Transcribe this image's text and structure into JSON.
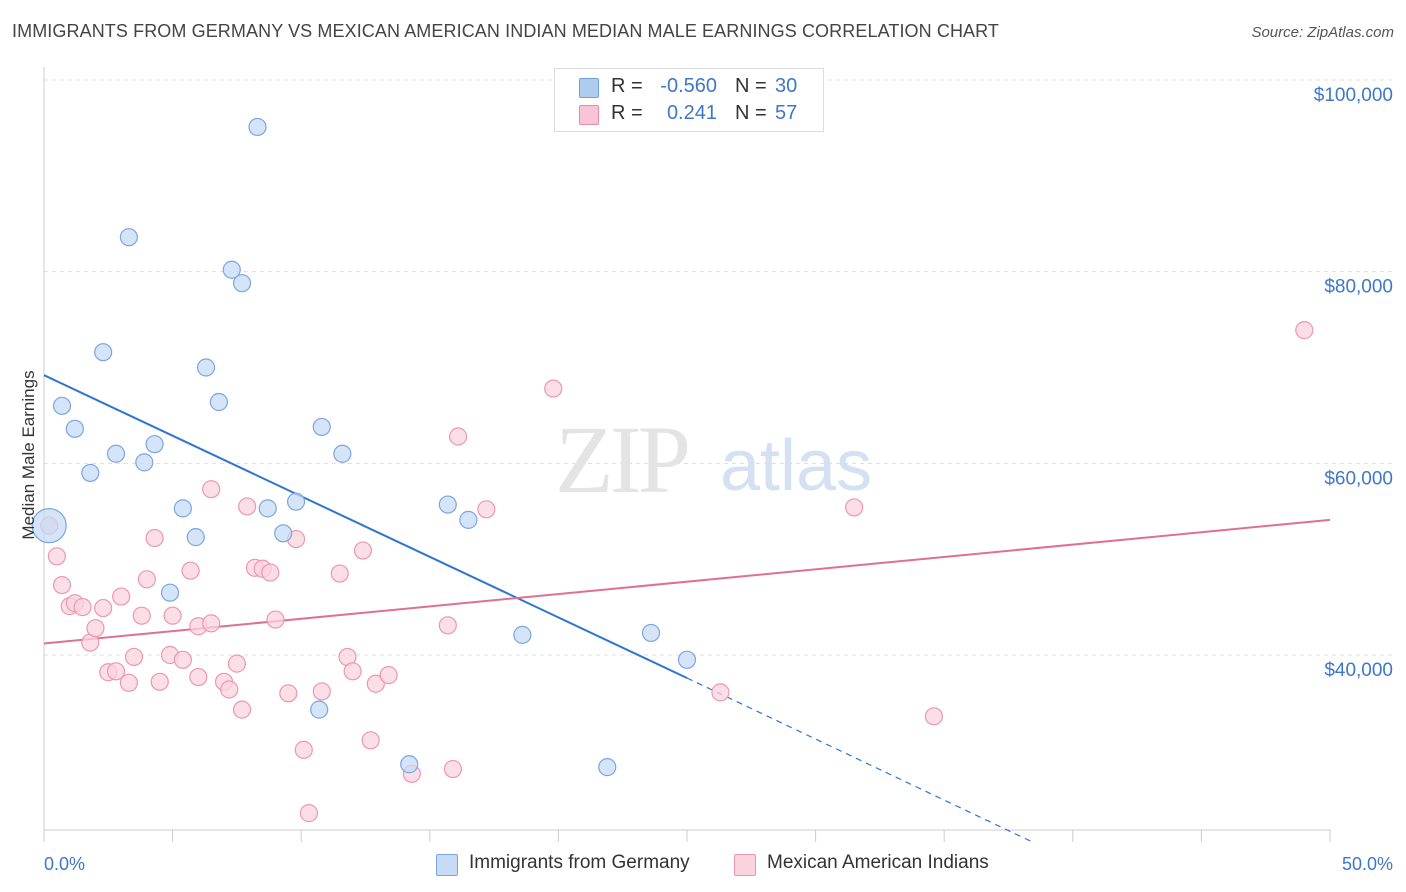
{
  "header": {
    "title": "IMMIGRANTS FROM GERMANY VS MEXICAN AMERICAN INDIAN MEDIAN MALE EARNINGS CORRELATION CHART",
    "source": "Source: ZipAtlas.com"
  },
  "watermark": {
    "zip": "ZIP",
    "atlas": "atlas"
  },
  "legend": {
    "rows": [
      {
        "r_label": "R =",
        "r_value": "-0.560",
        "n_label": "N =",
        "n_value": "30",
        "color": "#aecbf0",
        "border": "#6f9fdc"
      },
      {
        "r_label": "R =",
        "r_value": "0.241",
        "n_label": "N =",
        "n_value": "57",
        "color": "#f7c5d5",
        "border": "#e98aa8"
      }
    ]
  },
  "bottom_legend": {
    "items": [
      {
        "label": "Immigrants from Germany",
        "color": "#c7dbf5",
        "border": "#7aa6df"
      },
      {
        "label": "Mexican American Indians",
        "color": "#fbd3df",
        "border": "#eb97b1"
      }
    ]
  },
  "chart_data": {
    "type": "scatter",
    "title": "IMMIGRANTS FROM GERMANY VS MEXICAN AMERICAN INDIAN MEDIAN MALE EARNINGS CORRELATION CHART",
    "xlabel": "",
    "ylabel": "Median Male Earnings",
    "xlim": [
      0,
      50
    ],
    "ylim": [
      22000,
      103000
    ],
    "x_tick_labels": [
      "0.0%",
      "50.0%"
    ],
    "y_ticks": [
      40000,
      60000,
      80000,
      100000
    ],
    "y_tick_labels": [
      "$40,000",
      "$60,000",
      "$80,000",
      "$100,000"
    ],
    "grid": true,
    "legend_position": "top-center",
    "series": [
      {
        "name": "Immigrants from Germany",
        "color": "#7aa6df",
        "fill": "#c7dbf5",
        "line_color": "#2f74d0",
        "trend": {
          "x0": 0,
          "y0": 69200,
          "x1": 25,
          "y1": 37600,
          "dashed_to_x": 38.5,
          "dashed_to_y": 20400
        },
        "points": [
          {
            "x": 0.2,
            "y": 53500,
            "big": true
          },
          {
            "x": 0.7,
            "y": 66000
          },
          {
            "x": 1.2,
            "y": 63600
          },
          {
            "x": 1.8,
            "y": 59000
          },
          {
            "x": 2.3,
            "y": 71600
          },
          {
            "x": 2.8,
            "y": 61000
          },
          {
            "x": 3.3,
            "y": 83600
          },
          {
            "x": 3.9,
            "y": 60100
          },
          {
            "x": 4.3,
            "y": 62000
          },
          {
            "x": 4.9,
            "y": 46500
          },
          {
            "x": 5.4,
            "y": 55300
          },
          {
            "x": 5.9,
            "y": 52300
          },
          {
            "x": 6.3,
            "y": 70000
          },
          {
            "x": 6.8,
            "y": 66400
          },
          {
            "x": 7.3,
            "y": 80200
          },
          {
            "x": 7.7,
            "y": 78800
          },
          {
            "x": 8.3,
            "y": 95100
          },
          {
            "x": 8.7,
            "y": 55300
          },
          {
            "x": 9.3,
            "y": 52700
          },
          {
            "x": 9.8,
            "y": 56000
          },
          {
            "x": 10.7,
            "y": 34300
          },
          {
            "x": 10.8,
            "y": 63800
          },
          {
            "x": 11.6,
            "y": 61000
          },
          {
            "x": 14.2,
            "y": 28600
          },
          {
            "x": 15.7,
            "y": 55700
          },
          {
            "x": 16.5,
            "y": 54100
          },
          {
            "x": 18.6,
            "y": 42100
          },
          {
            "x": 21.9,
            "y": 28300
          },
          {
            "x": 23.6,
            "y": 42300
          },
          {
            "x": 25.0,
            "y": 39500
          }
        ]
      },
      {
        "name": "Mexican American Indians",
        "color": "#eb97b1",
        "fill": "#fbd3df",
        "line_color": "#e06f96",
        "trend": {
          "x0": 0,
          "y0": 41200,
          "x1": 50,
          "y1": 54100
        },
        "points": [
          {
            "x": 0.2,
            "y": 53500
          },
          {
            "x": 0.5,
            "y": 50300
          },
          {
            "x": 0.7,
            "y": 47300
          },
          {
            "x": 1.0,
            "y": 45100
          },
          {
            "x": 1.2,
            "y": 45400
          },
          {
            "x": 1.5,
            "y": 45000
          },
          {
            "x": 1.8,
            "y": 41300
          },
          {
            "x": 2.0,
            "y": 42800
          },
          {
            "x": 2.3,
            "y": 44900
          },
          {
            "x": 2.5,
            "y": 38200
          },
          {
            "x": 2.8,
            "y": 38300
          },
          {
            "x": 3.0,
            "y": 46100
          },
          {
            "x": 3.3,
            "y": 37100
          },
          {
            "x": 3.5,
            "y": 39800
          },
          {
            "x": 3.8,
            "y": 44100
          },
          {
            "x": 4.0,
            "y": 47900
          },
          {
            "x": 4.3,
            "y": 52200
          },
          {
            "x": 4.5,
            "y": 37200
          },
          {
            "x": 4.9,
            "y": 40000
          },
          {
            "x": 5.0,
            "y": 44100
          },
          {
            "x": 5.4,
            "y": 39500
          },
          {
            "x": 5.7,
            "y": 48800
          },
          {
            "x": 6.0,
            "y": 43000
          },
          {
            "x": 6.0,
            "y": 37700
          },
          {
            "x": 6.5,
            "y": 43300
          },
          {
            "x": 6.5,
            "y": 57300
          },
          {
            "x": 7.0,
            "y": 37200
          },
          {
            "x": 7.2,
            "y": 36400
          },
          {
            "x": 7.5,
            "y": 39100
          },
          {
            "x": 7.7,
            "y": 34300
          },
          {
            "x": 7.9,
            "y": 55500
          },
          {
            "x": 8.2,
            "y": 49100
          },
          {
            "x": 8.5,
            "y": 49000
          },
          {
            "x": 8.8,
            "y": 48600
          },
          {
            "x": 9.0,
            "y": 43700
          },
          {
            "x": 9.5,
            "y": 36000
          },
          {
            "x": 9.8,
            "y": 52100
          },
          {
            "x": 10.1,
            "y": 30100
          },
          {
            "x": 10.3,
            "y": 23500
          },
          {
            "x": 10.8,
            "y": 36200
          },
          {
            "x": 11.5,
            "y": 48500
          },
          {
            "x": 11.8,
            "y": 39800
          },
          {
            "x": 12.0,
            "y": 38300
          },
          {
            "x": 12.4,
            "y": 50900
          },
          {
            "x": 12.7,
            "y": 31100
          },
          {
            "x": 12.9,
            "y": 37000
          },
          {
            "x": 13.4,
            "y": 37900
          },
          {
            "x": 14.3,
            "y": 27600
          },
          {
            "x": 15.7,
            "y": 43100
          },
          {
            "x": 15.9,
            "y": 28100
          },
          {
            "x": 16.1,
            "y": 62800
          },
          {
            "x": 17.2,
            "y": 55200
          },
          {
            "x": 19.8,
            "y": 67800
          },
          {
            "x": 26.3,
            "y": 36100
          },
          {
            "x": 31.5,
            "y": 55400
          },
          {
            "x": 34.6,
            "y": 33600
          },
          {
            "x": 49.0,
            "y": 73900
          }
        ]
      }
    ]
  }
}
